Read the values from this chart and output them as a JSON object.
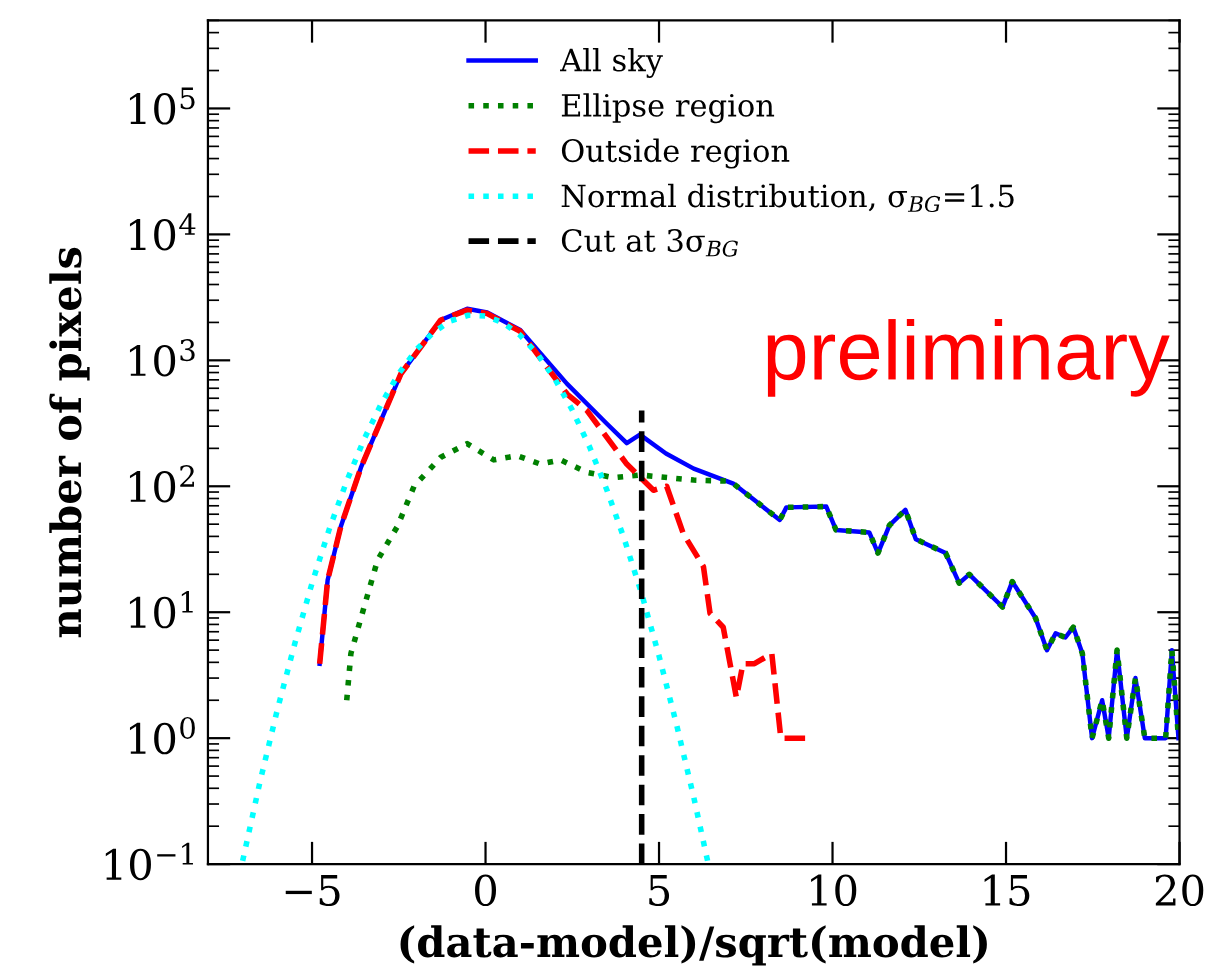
{
  "chart_data": {
    "type": "line",
    "xlabel": "(data-model)/sqrt(model)",
    "ylabel": "number of pixels",
    "log": "y",
    "xlim": [
      -8,
      20
    ],
    "ylim": [
      0.1,
      500000
    ],
    "xticks": [
      {
        "value": -5,
        "label": "−5"
      },
      0,
      5,
      10,
      15,
      20
    ],
    "yticks": [
      {
        "value": 0.1,
        "label": "10$^{−1}$"
      },
      {
        "value": 1,
        "label": "10$^{0}$"
      },
      {
        "value": 10,
        "label": "10$^{1}$"
      },
      {
        "value": 100,
        "label": "10$^{2}$"
      },
      {
        "value": 1000,
        "label": "10$^{3}$"
      },
      {
        "value": 10000,
        "label": "10$^{4}$"
      },
      {
        "value": 100000,
        "label": "10$^{5}$"
      }
    ],
    "grid": false,
    "legend": "top",
    "marker": "none",
    "series": [
      {
        "name": "All sky",
        "color": "#0000ff",
        "line_style": "solid",
        "x": [
          -4.78,
          -4.55,
          -4.17,
          -3.59,
          -3.02,
          -2.44,
          -1.29,
          -0.53,
          0.05,
          1.0,
          2.35,
          3.49,
          4.07,
          4.45,
          5.2,
          6.0,
          7.14,
          8.48,
          8.67,
          9.82,
          10.1,
          11.06,
          11.31,
          11.64,
          12.1,
          12.4,
          13.26,
          13.65,
          13.94,
          14.9,
          15.18,
          15.85,
          16.18,
          16.43,
          16.71,
          16.94,
          17.2,
          17.48,
          17.77,
          17.96,
          18.2,
          18.48,
          18.73,
          19.0,
          19.6,
          19.78,
          19.97
        ],
        "values": [
          3.9,
          18,
          48,
          141,
          330,
          780,
          2090,
          2570,
          2400,
          1740,
          650,
          315,
          220,
          257,
          182,
          138,
          105,
          54,
          68,
          69,
          45,
          43,
          29.5,
          49,
          65,
          38,
          29.5,
          17,
          20,
          11,
          17.5,
          9,
          5,
          6.8,
          6.3,
          7.6,
          4.7,
          1,
          2,
          1,
          5,
          1,
          3,
          1,
          1,
          5,
          1
        ]
      },
      {
        "name": "Ellipse region",
        "color": "#008000",
        "line_style": "dotted",
        "x": [
          -4.0,
          -3.88,
          -3.5,
          -3.11,
          -2.54,
          -2.06,
          -1.29,
          -0.53,
          0.24,
          0.91,
          1.58,
          2.16,
          2.92,
          3.69,
          4.45,
          6.0,
          6.94,
          7.14,
          8.48,
          8.67,
          9.82,
          10.1,
          11.06,
          11.31,
          11.64,
          12.1,
          12.4,
          13.26,
          13.65,
          13.94,
          14.9,
          15.18,
          15.85,
          16.18,
          16.43,
          16.71,
          16.94,
          17.2,
          17.48,
          17.77,
          17.96,
          18.2,
          18.48,
          18.73,
          19.0,
          19.6,
          19.78,
          19.97
        ],
        "values": [
          2,
          4.7,
          11,
          26,
          48,
          100,
          170,
          218,
          162,
          175,
          150,
          162,
          129,
          117,
          123,
          112,
          110,
          105,
          54,
          68,
          69,
          45,
          43,
          29.5,
          49,
          65,
          38,
          29.5,
          17,
          20,
          11,
          17.5,
          9,
          5,
          6.8,
          6.3,
          7.6,
          4.7,
          1,
          2,
          1,
          5,
          1,
          3,
          1,
          1,
          5,
          1
        ]
      },
      {
        "name": "Outside region",
        "color": "#ff0000",
        "line_style": "dashed",
        "x": [
          -4.78,
          -4.55,
          -4.17,
          -3.59,
          -3.02,
          -2.44,
          -1.29,
          -0.53,
          0.05,
          1.0,
          2.35,
          2.92,
          4.07,
          4.84,
          5.22,
          5.7,
          6.28,
          6.47,
          6.85,
          7.23,
          7.42,
          7.75,
          8.25,
          8.51,
          9.28
        ],
        "values": [
          3.9,
          18,
          48,
          141,
          330,
          780,
          2090,
          2500,
          2350,
          1700,
          540,
          400,
          150,
          93,
          100,
          42,
          23,
          9.8,
          7.6,
          2.1,
          3.9,
          3.9,
          4.7,
          1,
          1
        ]
      },
      {
        "name": "Normal distribution, σ$_{BG}$=1.5",
        "color": "#00ffff",
        "line_style": "dotted",
        "x": [
          -7,
          -6.5,
          -6,
          -5.5,
          -5,
          -4.5,
          -4,
          -3.5,
          -3,
          -2.5,
          -2,
          -1.5,
          -1,
          -0.5,
          0,
          0.5,
          1,
          1.5,
          2,
          2.5,
          3,
          3.5,
          4,
          4.5,
          5,
          5.5,
          6,
          6.4
        ],
        "values": [
          0.106,
          0.45,
          1.68,
          5.6,
          17,
          46,
          110,
          236,
          455,
          784,
          1210,
          1670,
          2060,
          2280,
          2250,
          1990,
          1580,
          1120,
          710,
          403,
          205,
          93,
          38,
          14,
          4.5,
          1.3,
          0.34,
          0.106
        ]
      },
      {
        "name": "Cut at 3σ$_{BG}$",
        "color": "#000000",
        "line_style": "dashed",
        "x": [
          4.5,
          4.5
        ],
        "values": [
          0.1,
          400
        ]
      }
    ],
    "annotations": [
      "preliminary"
    ]
  }
}
